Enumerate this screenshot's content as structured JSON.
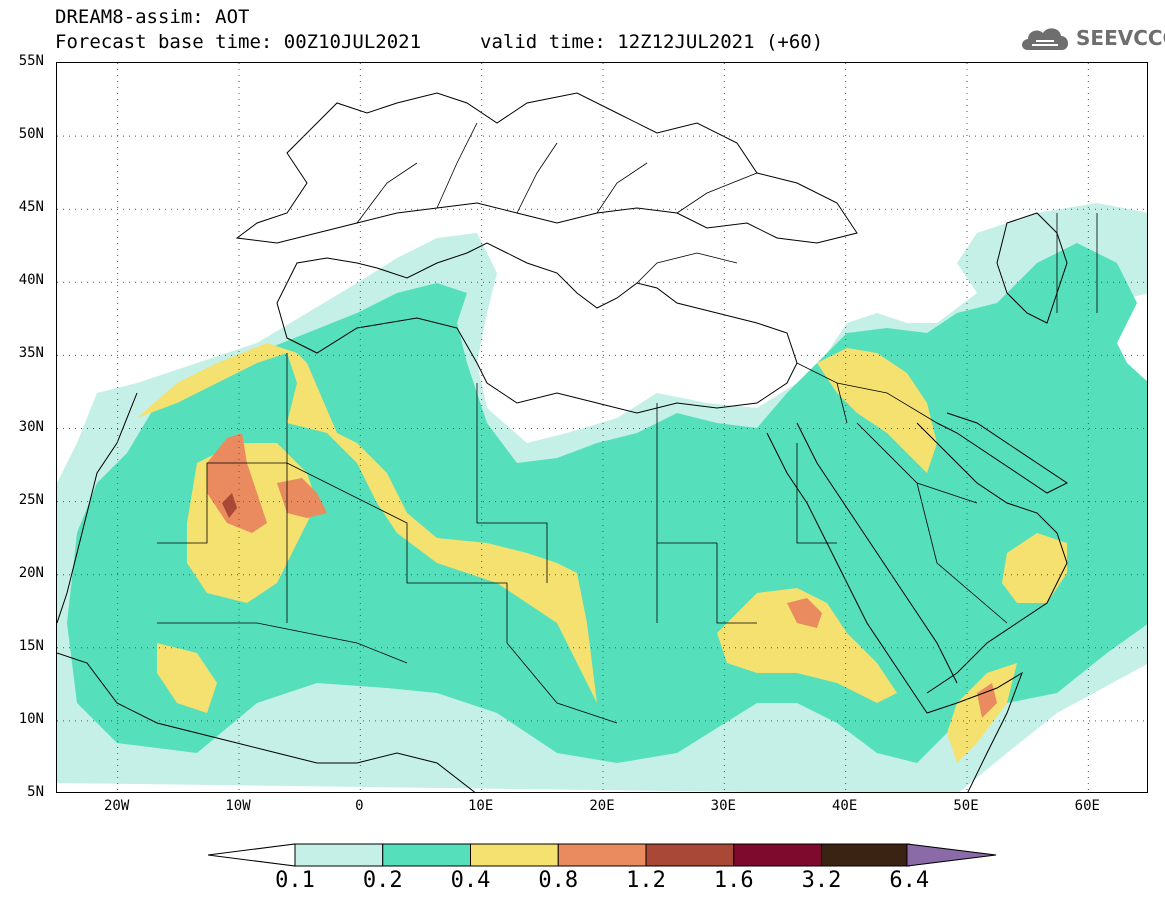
{
  "header": {
    "line1": "DREAM8-assim: AOT",
    "base_time": "Forecast base time: 00Z10JUL2021",
    "valid_time": "valid time: 12Z12JUL2021 (+60)"
  },
  "logo": {
    "text": "SEEVCCC",
    "icon": "cloud-icon"
  },
  "axes": {
    "lat_ticks": [
      "55N",
      "50N",
      "45N",
      "40N",
      "35N",
      "30N",
      "25N",
      "20N",
      "15N",
      "10N",
      "5N"
    ],
    "lat_values": [
      55,
      50,
      45,
      40,
      35,
      30,
      25,
      20,
      15,
      10,
      5
    ],
    "lon_ticks": [
      "20W",
      "10W",
      "0",
      "10E",
      "20E",
      "30E",
      "40E",
      "50E",
      "60E"
    ],
    "lon_values": [
      -20,
      -10,
      0,
      10,
      20,
      30,
      40,
      50,
      60
    ],
    "lon_range": [
      -25,
      65
    ],
    "lat_range": [
      5,
      55
    ]
  },
  "legend": {
    "levels": [
      "0.1",
      "0.2",
      "0.4",
      "0.8",
      "1.2",
      "1.6",
      "3.2",
      "6.4"
    ],
    "colors": [
      "#c4f0e7",
      "#55dfbb",
      "#f5e16f",
      "#e98b5e",
      "#a94836",
      "#7e0a2d",
      "#3b2314",
      "#8b6aa8"
    ]
  },
  "colors": {
    "aot_0_1": "#c4f0e7",
    "aot_0_2": "#55dfbb",
    "aot_0_4": "#f5e16f",
    "aot_0_8": "#e98b5e",
    "aot_1_2": "#a94836"
  }
}
